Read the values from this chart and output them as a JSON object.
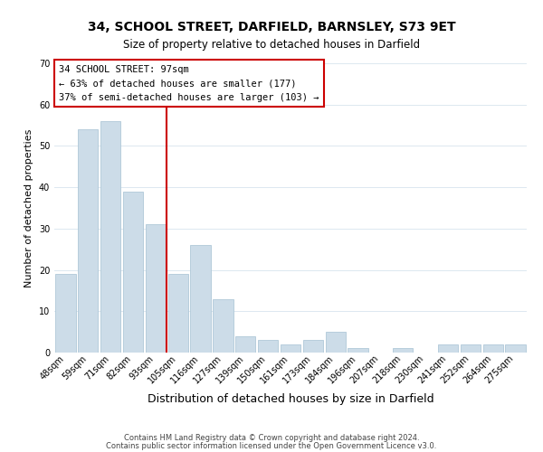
{
  "title": "34, SCHOOL STREET, DARFIELD, BARNSLEY, S73 9ET",
  "subtitle": "Size of property relative to detached houses in Darfield",
  "xlabel": "Distribution of detached houses by size in Darfield",
  "ylabel": "Number of detached properties",
  "bar_labels": [
    "48sqm",
    "59sqm",
    "71sqm",
    "82sqm",
    "93sqm",
    "105sqm",
    "116sqm",
    "127sqm",
    "139sqm",
    "150sqm",
    "161sqm",
    "173sqm",
    "184sqm",
    "196sqm",
    "207sqm",
    "218sqm",
    "230sqm",
    "241sqm",
    "252sqm",
    "264sqm",
    "275sqm"
  ],
  "bar_values": [
    19,
    54,
    56,
    39,
    31,
    19,
    26,
    13,
    4,
    3,
    2,
    3,
    5,
    1,
    0,
    1,
    0,
    2,
    2,
    2,
    2
  ],
  "bar_color": "#ccdce8",
  "bar_edge_color": "#b0c8d8",
  "vline_x_index": 4.5,
  "vline_color": "#cc0000",
  "ylim": [
    0,
    70
  ],
  "yticks": [
    0,
    10,
    20,
    30,
    40,
    50,
    60,
    70
  ],
  "annotation_title": "34 SCHOOL STREET: 97sqm",
  "annotation_line1": "← 63% of detached houses are smaller (177)",
  "annotation_line2": "37% of semi-detached houses are larger (103) →",
  "annotation_box_edge": "#cc0000",
  "footer1": "Contains HM Land Registry data © Crown copyright and database right 2024.",
  "footer2": "Contains public sector information licensed under the Open Government Licence v3.0.",
  "background_color": "#ffffff",
  "grid_color": "#dce8f0",
  "title_fontsize": 10,
  "subtitle_fontsize": 8.5,
  "xlabel_fontsize": 9,
  "ylabel_fontsize": 8,
  "tick_fontsize": 7,
  "annotation_fontsize": 7.5,
  "footer_fontsize": 6
}
